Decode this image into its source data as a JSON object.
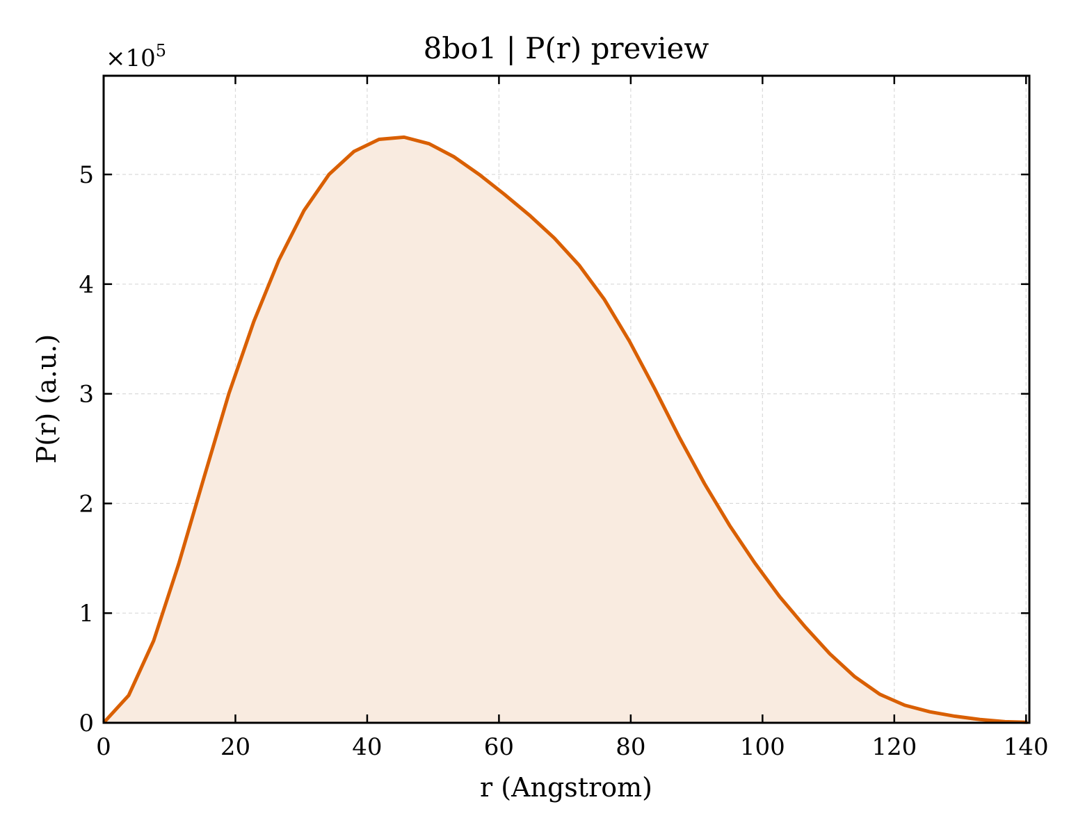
{
  "chart_data": {
    "type": "area",
    "title": "8bo1 | P(r) preview",
    "xlabel": "r (Angstrom)",
    "ylabel": "P(r) (a.u.)",
    "y_offset_label": "×10",
    "y_offset_exponent": "5",
    "xlim": [
      0,
      140.5
    ],
    "ylim": [
      0,
      5.9
    ],
    "y_scale_factor": 100000,
    "xticks": [
      0,
      20,
      40,
      60,
      80,
      100,
      120,
      140
    ],
    "yticks": [
      0,
      1,
      2,
      3,
      4,
      5
    ],
    "grid": true,
    "line_color": "#d95f02",
    "fill_color": "#f9ebe0",
    "series": [
      {
        "x": [
          0,
          3.8,
          7.6,
          11.4,
          15.2,
          19.0,
          22.8,
          26.6,
          30.4,
          34.2,
          38.0,
          41.8,
          45.6,
          49.4,
          53.2,
          57.0,
          60.8,
          64.6,
          68.4,
          72.2,
          76.0,
          79.8,
          83.6,
          87.4,
          91.2,
          95.0,
          98.8,
          102.6,
          106.4,
          110.2,
          114.0,
          117.8,
          121.6,
          125.4,
          129.2,
          133.0,
          136.8,
          140.2
        ],
        "y": [
          0.0,
          0.25,
          0.75,
          1.45,
          2.23,
          3.0,
          3.66,
          4.22,
          4.67,
          5.0,
          5.21,
          5.32,
          5.34,
          5.28,
          5.16,
          5.0,
          4.82,
          4.63,
          4.42,
          4.17,
          3.86,
          3.48,
          3.05,
          2.6,
          2.18,
          1.8,
          1.46,
          1.15,
          0.88,
          0.63,
          0.42,
          0.26,
          0.16,
          0.1,
          0.06,
          0.03,
          0.01,
          0.005
        ]
      }
    ]
  }
}
